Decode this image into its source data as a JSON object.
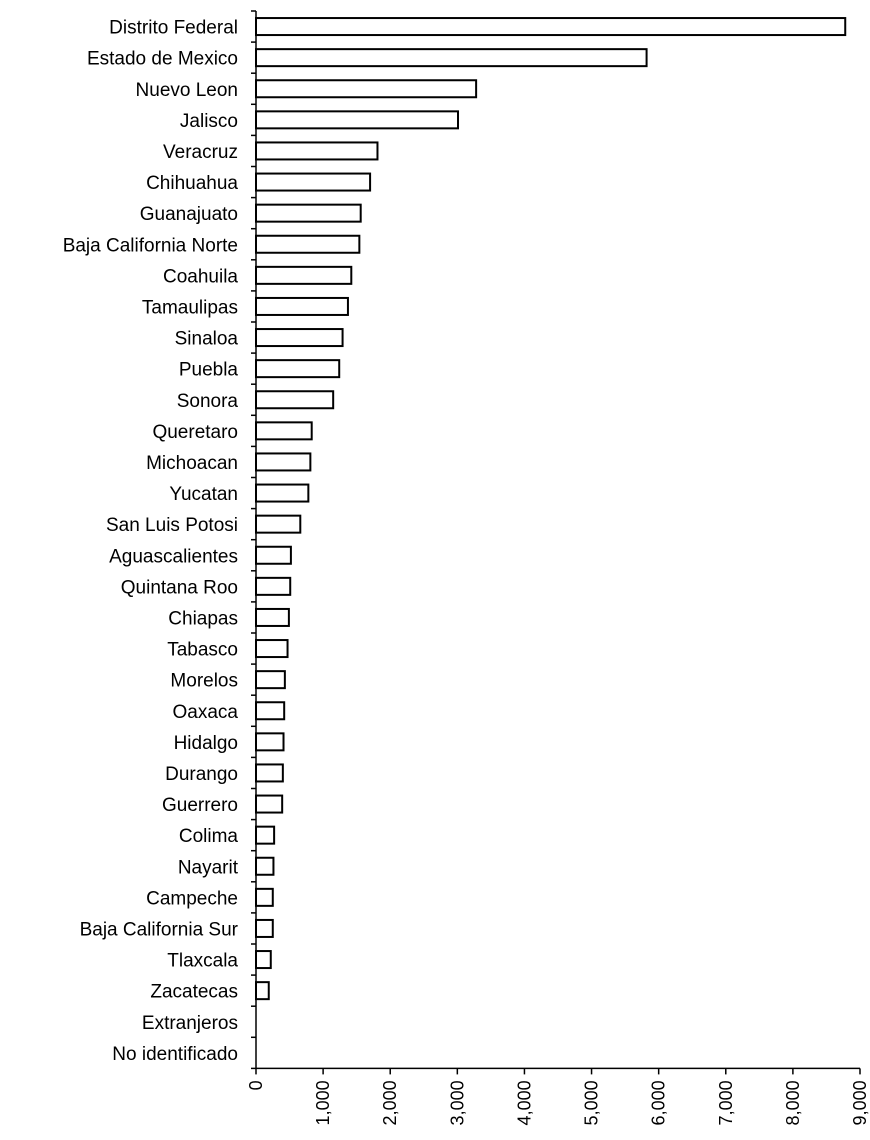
{
  "chart_data": {
    "type": "bar",
    "orientation": "horizontal",
    "title": "",
    "xlabel": "",
    "ylabel": "",
    "xlim": [
      0,
      9000
    ],
    "grid": false,
    "legend": "none",
    "bar_fill": "#ffffff",
    "bar_stroke": "#000000",
    "categories": [
      "Distrito Federal",
      "Estado de Mexico",
      "Nuevo Leon",
      "Jalisco",
      "Veracruz",
      "Chihuahua",
      "Guanajuato",
      "Baja California Norte",
      "Coahuila",
      "Tamaulipas",
      "Sinaloa",
      "Puebla",
      "Sonora",
      "Queretaro",
      "Michoacan",
      "Yucatan",
      "San Luis Potosi",
      "Aguascalientes",
      "Quintana Roo",
      "Chiapas",
      "Tabasco",
      "Morelos",
      "Oaxaca",
      "Hidalgo",
      "Durango",
      "Guerrero",
      "Colima",
      "Nayarit",
      "Campeche",
      "Baja California Sur",
      "Tlaxcala",
      "Zacatecas",
      "Extranjeros",
      "No identificado"
    ],
    "values": [
      8780,
      5820,
      3280,
      3010,
      1810,
      1700,
      1560,
      1540,
      1420,
      1370,
      1290,
      1240,
      1150,
      830,
      810,
      780,
      660,
      520,
      510,
      490,
      470,
      430,
      420,
      410,
      400,
      390,
      270,
      260,
      250,
      250,
      220,
      190,
      0,
      0
    ],
    "x_ticks": [
      0,
      1000,
      2000,
      3000,
      4000,
      5000,
      6000,
      7000,
      8000,
      9000
    ],
    "x_tick_labels": [
      "0",
      "1,000",
      "2,000",
      "3,000",
      "4,000",
      "5,000",
      "6,000",
      "7,000",
      "8,000",
      "9,000"
    ]
  }
}
